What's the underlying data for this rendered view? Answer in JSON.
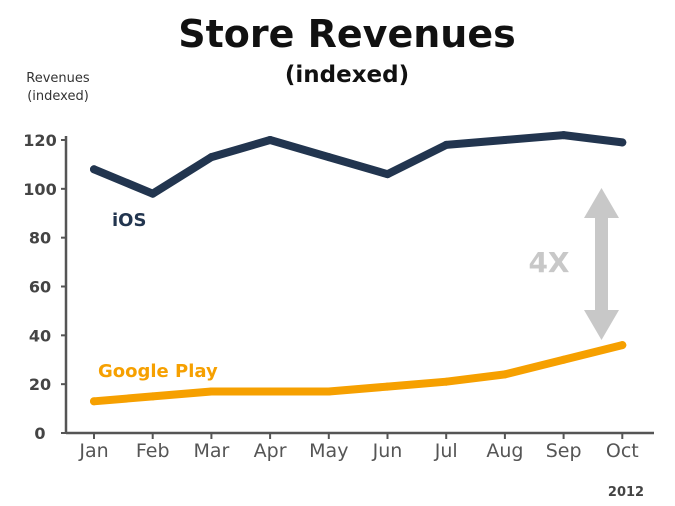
{
  "chart_data": {
    "type": "line",
    "title": "Store Revenues",
    "subtitle": "(indexed)",
    "ylabel_line1": "Revenues",
    "ylabel_line2": "(indexed)",
    "xlabel": "",
    "categories": [
      "Jan",
      "Feb",
      "Mar",
      "Apr",
      "May",
      "Jun",
      "Jul",
      "Aug",
      "Sep",
      "Oct"
    ],
    "yticks": [
      0,
      20,
      40,
      60,
      80,
      100,
      120
    ],
    "ylim": [
      0,
      120
    ],
    "grid": false,
    "series": [
      {
        "name": "iOS",
        "color": "#22354f",
        "values": [
          108,
          98,
          113,
          120,
          113,
          106,
          118,
          120,
          122,
          119
        ]
      },
      {
        "name": "Google Play",
        "color": "#f6a000",
        "values": [
          13,
          15,
          17,
          17,
          17,
          19,
          21,
          24,
          30,
          36
        ]
      }
    ],
    "annotation": {
      "text": "4X",
      "color": "#c8c8c8"
    },
    "footer_year": "2012"
  }
}
